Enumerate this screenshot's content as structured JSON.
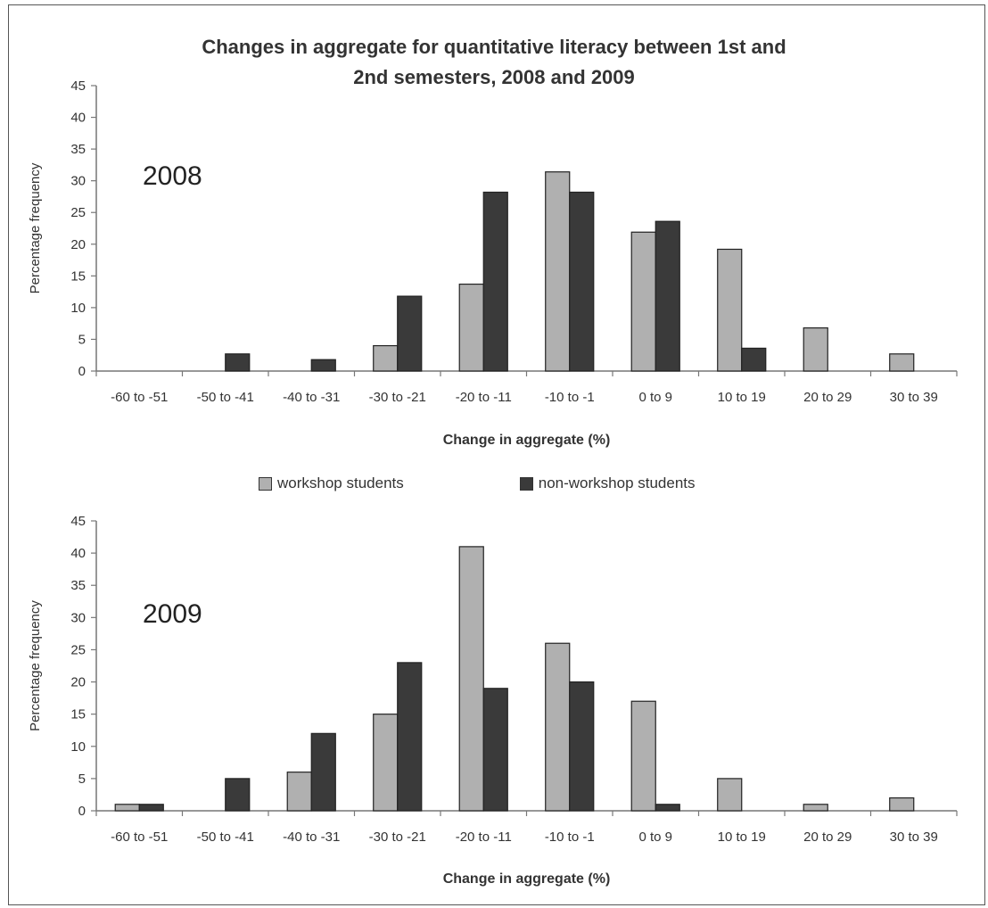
{
  "chart_data": [
    {
      "type": "bar",
      "title_lines": [
        "Changes in aggregate for quantitative literacy between 1st and",
        "2nd semesters, 2008 and 2009"
      ],
      "annotation": "2008",
      "xlabel": "Change in aggregate (%)",
      "ylabel": "Percentage frequency",
      "ylim": [
        0,
        45
      ],
      "yticks": [
        0,
        5,
        10,
        15,
        20,
        25,
        30,
        35,
        40,
        45
      ],
      "categories": [
        "-60 to -51",
        "-50 to -41",
        "-40 to -31",
        "-30 to -21",
        "-20 to -11",
        "-10 to -1",
        "0 to 9",
        "10 to 19",
        "20 to 29",
        "30 to 39"
      ],
      "series": [
        {
          "name": "workshop students",
          "color": "#b0b0b0",
          "values": [
            0,
            0,
            0,
            4,
            13.7,
            31.4,
            21.9,
            19.2,
            6.8,
            2.7
          ]
        },
        {
          "name": "non-workshop students",
          "color": "#3a3a3a",
          "values": [
            0,
            2.7,
            1.8,
            11.8,
            28.2,
            28.2,
            23.6,
            3.6,
            0,
            0
          ]
        }
      ],
      "grid": false
    },
    {
      "type": "bar",
      "annotation": "2009",
      "xlabel": "Change in aggregate (%)",
      "ylabel": "Percentage frequency",
      "ylim": [
        0,
        45
      ],
      "yticks": [
        0,
        5,
        10,
        15,
        20,
        25,
        30,
        35,
        40,
        45
      ],
      "categories": [
        "-60 to -51",
        "-50 to -41",
        "-40 to -31",
        "-30 to -21",
        "-20 to -11",
        "-10 to -1",
        "0 to 9",
        "10 to 19",
        "20 to 29",
        "30 to 39"
      ],
      "series": [
        {
          "name": "workshop students",
          "color": "#b0b0b0",
          "values": [
            1,
            0,
            6,
            15,
            41,
            26,
            17,
            5,
            1,
            2
          ]
        },
        {
          "name": "non-workshop students",
          "color": "#3a3a3a",
          "values": [
            1,
            5,
            12,
            23,
            19,
            20,
            1,
            0,
            0,
            0
          ]
        }
      ],
      "grid": false
    }
  ],
  "legend": {
    "position": "between-charts",
    "items": [
      {
        "label": "workshop students",
        "color": "#b0b0b0"
      },
      {
        "label": "non-workshop students",
        "color": "#3a3a3a"
      }
    ]
  }
}
